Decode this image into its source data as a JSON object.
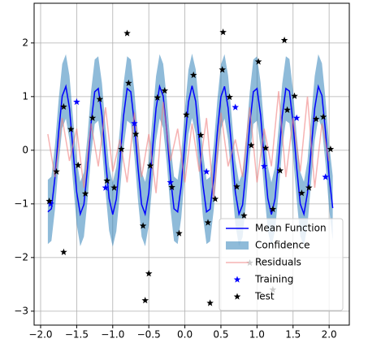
{
  "chart_data": {
    "type": "line",
    "x": [
      -1.9,
      -1.85,
      -1.8,
      -1.75,
      -1.7,
      -1.65,
      -1.6,
      -1.55,
      -1.5,
      -1.45,
      -1.4,
      -1.35,
      -1.3,
      -1.25,
      -1.2,
      -1.15,
      -1.1,
      -1.05,
      -1.0,
      -0.95,
      -0.9,
      -0.85,
      -0.8,
      -0.75,
      -0.7,
      -0.65,
      -0.6,
      -0.55,
      -0.5,
      -0.45,
      -0.4,
      -0.35,
      -0.3,
      -0.25,
      -0.2,
      -0.15,
      -0.1,
      -0.05,
      0.0,
      0.05,
      0.1,
      0.15,
      0.2,
      0.25,
      0.3,
      0.35,
      0.4,
      0.45,
      0.5,
      0.55,
      0.6,
      0.65,
      0.7,
      0.75,
      0.8,
      0.85,
      0.9,
      0.95,
      1.0,
      1.05,
      1.1,
      1.15,
      1.2,
      1.25,
      1.3,
      1.35,
      1.4,
      1.45,
      1.5,
      1.55,
      1.6,
      1.65,
      1.7,
      1.75,
      1.8,
      1.85,
      1.9,
      1.95,
      2.0,
      2.05
    ],
    "series": [
      {
        "name": "Mean Function",
        "style": "line",
        "color": "#0000ff",
        "values": [
          -1.15,
          -1.09,
          -0.5,
          0.34,
          1.01,
          1.19,
          0.79,
          0.0,
          -0.78,
          -1.19,
          -1.01,
          -0.34,
          0.5,
          1.09,
          1.15,
          0.65,
          -0.17,
          -0.9,
          -1.2,
          -0.91,
          -0.18,
          0.64,
          1.15,
          1.09,
          0.5,
          -0.33,
          -1.01,
          -1.19,
          -0.79,
          -0.01,
          0.78,
          1.19,
          1.01,
          0.34,
          -0.49,
          -1.09,
          -1.15,
          -0.66,
          0.16,
          0.9,
          1.2,
          0.91,
          0.18,
          -0.64,
          -1.15,
          -1.1,
          -0.51,
          0.33,
          1.0,
          1.19,
          0.79,
          0.01,
          -0.78,
          -1.19,
          -1.02,
          -0.35,
          0.49,
          1.09,
          1.15,
          0.66,
          -0.16,
          -0.9,
          -1.2,
          -0.91,
          -0.18,
          0.64,
          1.15,
          1.1,
          0.51,
          -0.32,
          -1.0,
          -1.19,
          -0.8,
          -0.01,
          0.78,
          1.19,
          1.02,
          0.35,
          -0.48,
          -1.08
        ]
      },
      {
        "name": "Confidence",
        "style": "band",
        "color": "#1f77b4",
        "halfwidth": 0.6
      },
      {
        "name": "Residuals",
        "style": "line",
        "color": "#f08080",
        "x": [
          -1.9,
          -1.8,
          -1.7,
          -1.6,
          -1.5,
          -1.4,
          -1.3,
          -1.2,
          -1.1,
          -1.0,
          -0.9,
          -0.8,
          -0.7,
          -0.6,
          -0.5,
          -0.4,
          -0.3,
          -0.2,
          -0.1,
          0.0,
          0.1,
          0.2,
          0.3,
          0.4,
          0.5,
          0.6,
          0.7,
          0.8,
          0.9,
          1.0,
          1.1,
          1.2,
          1.3,
          1.4,
          1.5,
          1.6,
          1.7,
          1.8,
          1.9,
          2.0
        ],
        "values": [
          0.3,
          -0.5,
          0.6,
          -0.2,
          0.4,
          -0.7,
          0.5,
          -0.3,
          0.8,
          -0.4,
          0.2,
          -0.6,
          0.7,
          -0.5,
          0.3,
          -0.8,
          0.9,
          -0.2,
          0.4,
          -0.6,
          0.5,
          -0.4,
          0.6,
          -0.9,
          0.7,
          -0.3,
          0.2,
          -0.5,
          0.8,
          -0.6,
          0.4,
          -0.3,
          1.1,
          -0.5,
          0.6,
          -0.4,
          1.0,
          -0.7,
          0.5,
          -0.2
        ]
      },
      {
        "name": "Training",
        "style": "scatter",
        "color": "#0000ff",
        "x": [
          -1.86,
          -1.5,
          -1.1,
          -0.7,
          -0.2,
          0.3,
          0.7,
          1.1,
          1.55,
          1.95
        ],
        "values": [
          -1.0,
          0.9,
          -0.7,
          0.5,
          -0.6,
          -0.4,
          0.8,
          -0.3,
          0.6,
          -0.5
        ]
      },
      {
        "name": "Test",
        "style": "scatter",
        "color": "#000000",
        "x": [
          -1.88,
          -1.78,
          -1.68,
          -1.58,
          -1.48,
          -1.38,
          -1.28,
          -1.18,
          -1.08,
          -0.98,
          -0.88,
          -0.78,
          -0.68,
          -0.58,
          -0.48,
          -0.38,
          -0.28,
          -0.18,
          -0.08,
          0.02,
          0.12,
          0.22,
          0.32,
          0.42,
          0.52,
          0.62,
          0.72,
          0.82,
          0.92,
          1.02,
          1.12,
          1.22,
          1.32,
          1.42,
          1.52,
          1.62,
          1.72,
          1.82,
          1.92,
          2.02,
          -0.55,
          0.35,
          1.22,
          0.53,
          1.38,
          -0.8,
          -1.68,
          -0.5,
          0.9
        ],
        "values": [
          -0.95,
          -0.4,
          0.81,
          0.39,
          -0.28,
          -0.81,
          0.6,
          0.95,
          -0.57,
          -0.7,
          0.02,
          1.25,
          0.3,
          -1.41,
          -0.29,
          0.98,
          1.11,
          -0.69,
          -1.55,
          0.66,
          1.4,
          0.28,
          -1.35,
          -0.91,
          1.5,
          0.99,
          -0.68,
          -1.22,
          0.09,
          1.65,
          0.04,
          -1.1,
          -0.38,
          0.75,
          1.01,
          -0.8,
          -0.7,
          0.58,
          0.62,
          0.02,
          -2.8,
          -2.85,
          -2.6,
          2.2,
          2.05,
          2.18,
          -1.9,
          -2.3,
          -2.1
        ]
      }
    ],
    "xlim": [
      -2.09,
      2.28
    ],
    "ylim": [
      -3.26,
      2.74
    ],
    "xticks": [
      {
        "value": -2.0,
        "label": "−2.0"
      },
      {
        "value": -1.5,
        "label": "−1.5"
      },
      {
        "value": -1.0,
        "label": "−1.0"
      },
      {
        "value": -0.5,
        "label": "−0.5"
      },
      {
        "value": 0.0,
        "label": "0.0"
      },
      {
        "value": 0.5,
        "label": "0.5"
      },
      {
        "value": 1.0,
        "label": "1.0"
      },
      {
        "value": 1.5,
        "label": "1.5"
      },
      {
        "value": 2.0,
        "label": "2.0"
      }
    ],
    "yticks": [
      {
        "value": -3,
        "label": "−3"
      },
      {
        "value": -2,
        "label": "−2"
      },
      {
        "value": -1,
        "label": "−1"
      },
      0,
      1,
      2
    ],
    "grid": true,
    "legend": "lower right"
  }
}
